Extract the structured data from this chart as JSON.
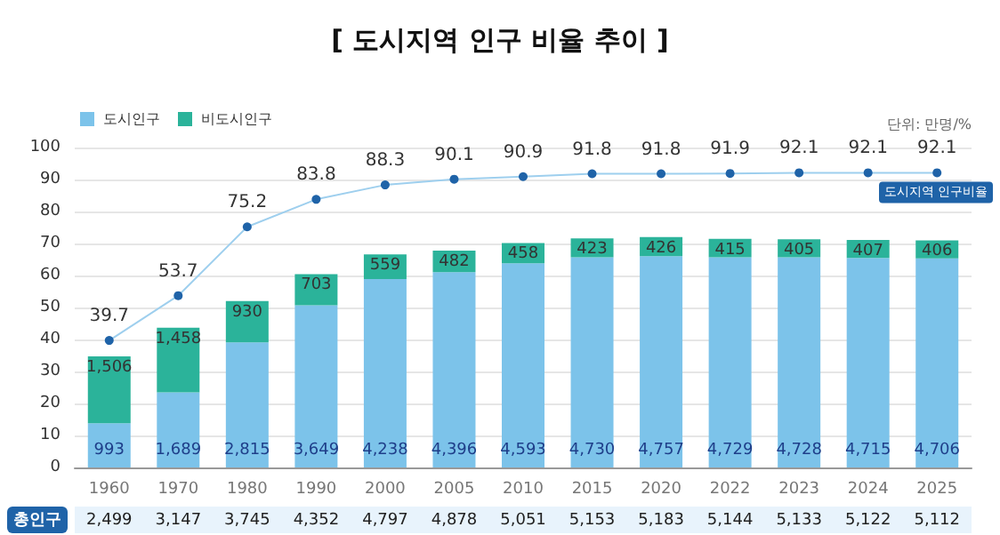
{
  "chart_data": {
    "type": "bar",
    "title": "[ 도시지역 인구 비율 추이 ]",
    "categories": [
      "1960",
      "1970",
      "1980",
      "1990",
      "2000",
      "2005",
      "2010",
      "2015",
      "2020",
      "2022",
      "2023",
      "2024",
      "2025"
    ],
    "stacked": true,
    "series": [
      {
        "name": "도시인구",
        "axis": "y2",
        "color": "#7cc3ea",
        "values": [
          993,
          1689,
          2815,
          3649,
          4238,
          4396,
          4593,
          4730,
          4757,
          4729,
          4728,
          4715,
          4706
        ],
        "value_labels": [
          "993",
          "1,689",
          "2,815",
          "3,649",
          "4,238",
          "4,396",
          "4,593",
          "4,730",
          "4,757",
          "4,729",
          "4,728",
          "4,715",
          "4,706"
        ]
      },
      {
        "name": "비도시인구",
        "axis": "y2",
        "color": "#2bb39a",
        "values": [
          1506,
          1458,
          930,
          703,
          559,
          482,
          458,
          423,
          426,
          415,
          405,
          407,
          406
        ],
        "value_labels": [
          "1,506",
          "1,458",
          "930",
          "703",
          "559",
          "482",
          "458",
          "423",
          "426",
          "415",
          "405",
          "407",
          "406"
        ]
      },
      {
        "name": "도시지역 인구비율",
        "type": "line",
        "axis": "y",
        "color": "#1f63a8",
        "values": [
          39.7,
          53.7,
          75.2,
          83.8,
          88.3,
          90.1,
          90.9,
          91.8,
          91.8,
          91.9,
          92.1,
          92.1,
          92.1
        ],
        "value_labels": [
          "39.7",
          "53.7",
          "75.2",
          "83.8",
          "88.3",
          "90.1",
          "90.9",
          "91.8",
          "91.8",
          "91.9",
          "92.1",
          "92.1",
          "92.1"
        ]
      }
    ],
    "totals": [
      "2,499",
      "3,147",
      "3,745",
      "4,352",
      "4,797",
      "4,878",
      "5,051",
      "5,153",
      "5,183",
      "5,144",
      "5,133",
      "5,122",
      "5,112"
    ],
    "annotations": [
      "단위: 만명/%",
      "총인구"
    ],
    "ylim": [
      0,
      100
    ],
    "yticks": [
      0,
      10,
      20,
      30,
      40,
      50,
      60,
      70,
      80,
      90,
      100
    ],
    "y2lim": [
      0,
      7200
    ],
    "grid": "y",
    "legend": "top left",
    "marker": "circle"
  }
}
